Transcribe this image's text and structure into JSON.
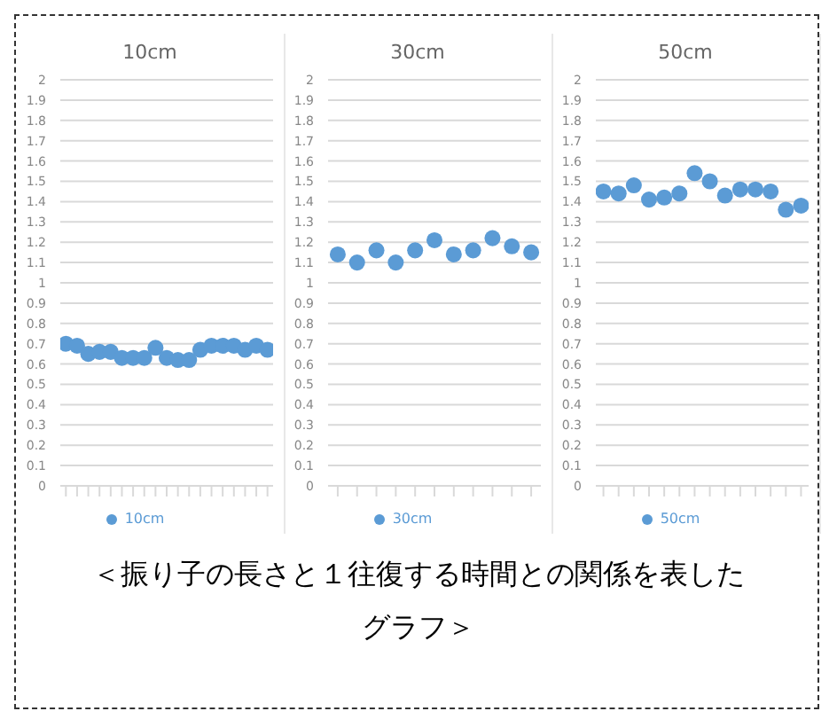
{
  "chart_data": [
    {
      "type": "scatter",
      "title": "10cm",
      "categories": [
        null,
        null,
        null,
        null,
        null,
        null,
        null,
        null,
        null,
        null,
        null,
        null,
        null,
        null,
        null,
        null,
        null,
        null,
        null
      ],
      "series": [
        {
          "name": "10cm",
          "color": "#5b9bd5",
          "values": [
            0.7,
            0.69,
            0.65,
            0.66,
            0.66,
            0.63,
            0.63,
            0.63,
            0.68,
            0.63,
            0.62,
            0.62,
            0.67,
            0.69,
            0.69,
            0.69,
            0.67,
            0.69,
            0.67
          ]
        }
      ],
      "ylim": [
        0,
        2
      ],
      "yticks": [
        0,
        0.1,
        0.2,
        0.3,
        0.4,
        0.5,
        0.6,
        0.7,
        0.8,
        0.9,
        1,
        1.1,
        1.2,
        1.3,
        1.4,
        1.5,
        1.6,
        1.7,
        1.8,
        1.9,
        2
      ],
      "grid": "y",
      "legend": "bottom",
      "marker": "circle"
    },
    {
      "type": "scatter",
      "title": "30cm",
      "categories": [
        null,
        null,
        null,
        null,
        null,
        null,
        null,
        null,
        null,
        null,
        null
      ],
      "series": [
        {
          "name": "30cm",
          "color": "#5b9bd5",
          "values": [
            1.14,
            1.1,
            1.16,
            1.1,
            1.16,
            1.21,
            1.14,
            1.16,
            1.22,
            1.18,
            1.15
          ]
        }
      ],
      "ylim": [
        0,
        2
      ],
      "yticks": [
        0,
        0.1,
        0.2,
        0.3,
        0.4,
        0.5,
        0.6,
        0.7,
        0.8,
        0.9,
        1,
        1.1,
        1.2,
        1.3,
        1.4,
        1.5,
        1.6,
        1.7,
        1.8,
        1.9,
        2
      ],
      "grid": "y",
      "legend": "bottom",
      "marker": "circle"
    },
    {
      "type": "scatter",
      "title": "50cm",
      "categories": [
        null,
        null,
        null,
        null,
        null,
        null,
        null,
        null,
        null,
        null,
        null,
        null,
        null,
        null
      ],
      "series": [
        {
          "name": "50cm",
          "color": "#5b9bd5",
          "values": [
            1.45,
            1.44,
            1.48,
            1.41,
            1.42,
            1.44,
            1.54,
            1.5,
            1.43,
            1.46,
            1.46,
            1.45,
            1.36,
            1.38
          ]
        }
      ],
      "ylim": [
        0,
        2
      ],
      "yticks": [
        0,
        0.1,
        0.2,
        0.3,
        0.4,
        0.5,
        0.6,
        0.7,
        0.8,
        0.9,
        1,
        1.1,
        1.2,
        1.3,
        1.4,
        1.5,
        1.6,
        1.7,
        1.8,
        1.9,
        2
      ],
      "grid": "y",
      "legend": "bottom",
      "marker": "circle",
      "annotations": [
        "＜振り子の長さと１往復する時間との関係を表したグラフ＞"
      ]
    }
  ]
}
